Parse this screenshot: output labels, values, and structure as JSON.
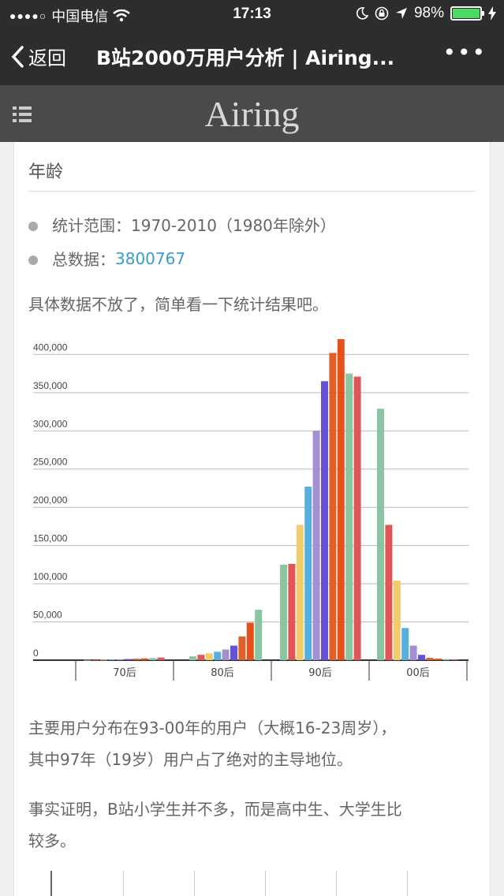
{
  "status": {
    "signal": "●●●●○",
    "carrier": "中国电信",
    "time": "17:13",
    "battery": "98%",
    "icons": [
      "wifi-icon",
      "moon-icon",
      "lock-rotation-icon",
      "location-icon",
      "battery-icon",
      "charging-icon"
    ]
  },
  "nav": {
    "back_label": "返回",
    "title": "B站2000万用户分析 | Airing...",
    "more": "•••"
  },
  "site": {
    "title": "Airing"
  },
  "article": {
    "section_title": "年龄",
    "stats_range_label": "统计范围：1970-2010（1980年除外）",
    "total_label": "总数据：",
    "total_value": "3800767",
    "intro": "具体数据不放了，简单看一下统计结果吧。",
    "para1_line1": "主要用户分布在93-00年的用户（大概16-23周岁），",
    "para1_line2": "其中97年（19岁）用户占了绝对的主导地位。",
    "para2_line1": "事实证明，B站小学生并不多，而是高中生、大学生比",
    "para2_line2": "较多。"
  },
  "chart_data": {
    "type": "bar",
    "ylim": [
      0,
      420000
    ],
    "ytick_labels": [
      "0",
      "50,000",
      "100,000",
      "150,000",
      "200,000",
      "250,000",
      "300,000",
      "350,000",
      "400,000"
    ],
    "yticks": [
      0,
      50000,
      100000,
      150000,
      200000,
      250000,
      300000,
      350000,
      400000
    ],
    "group_labels": [
      "70后",
      "80后",
      "90后",
      "00后"
    ],
    "palette": [
      "#8ac4a3",
      "#e05656",
      "#f1cc6a",
      "#55b0e0",
      "#a58fd3",
      "#6550d8",
      "#e0602a",
      "#e8501a",
      "#8ac4a3",
      "#e05656"
    ],
    "groups": [
      {
        "label": "70后",
        "values": [
          300,
          500,
          700,
          900,
          1200,
          1500,
          1900,
          2300,
          2800,
          3500
        ]
      },
      {
        "label": "80后",
        "values": [
          5000,
          7000,
          9000,
          11000,
          14000,
          19000,
          31000,
          49000,
          66000
        ]
      },
      {
        "label": "90后",
        "values": [
          125000,
          126000,
          177000,
          227000,
          300000,
          365000,
          402000,
          420000,
          375000,
          371000
        ]
      },
      {
        "label": "00后",
        "values": [
          329000,
          177000,
          104000,
          42000,
          19000,
          7000,
          3000,
          2000,
          1500,
          1000
        ]
      }
    ]
  }
}
